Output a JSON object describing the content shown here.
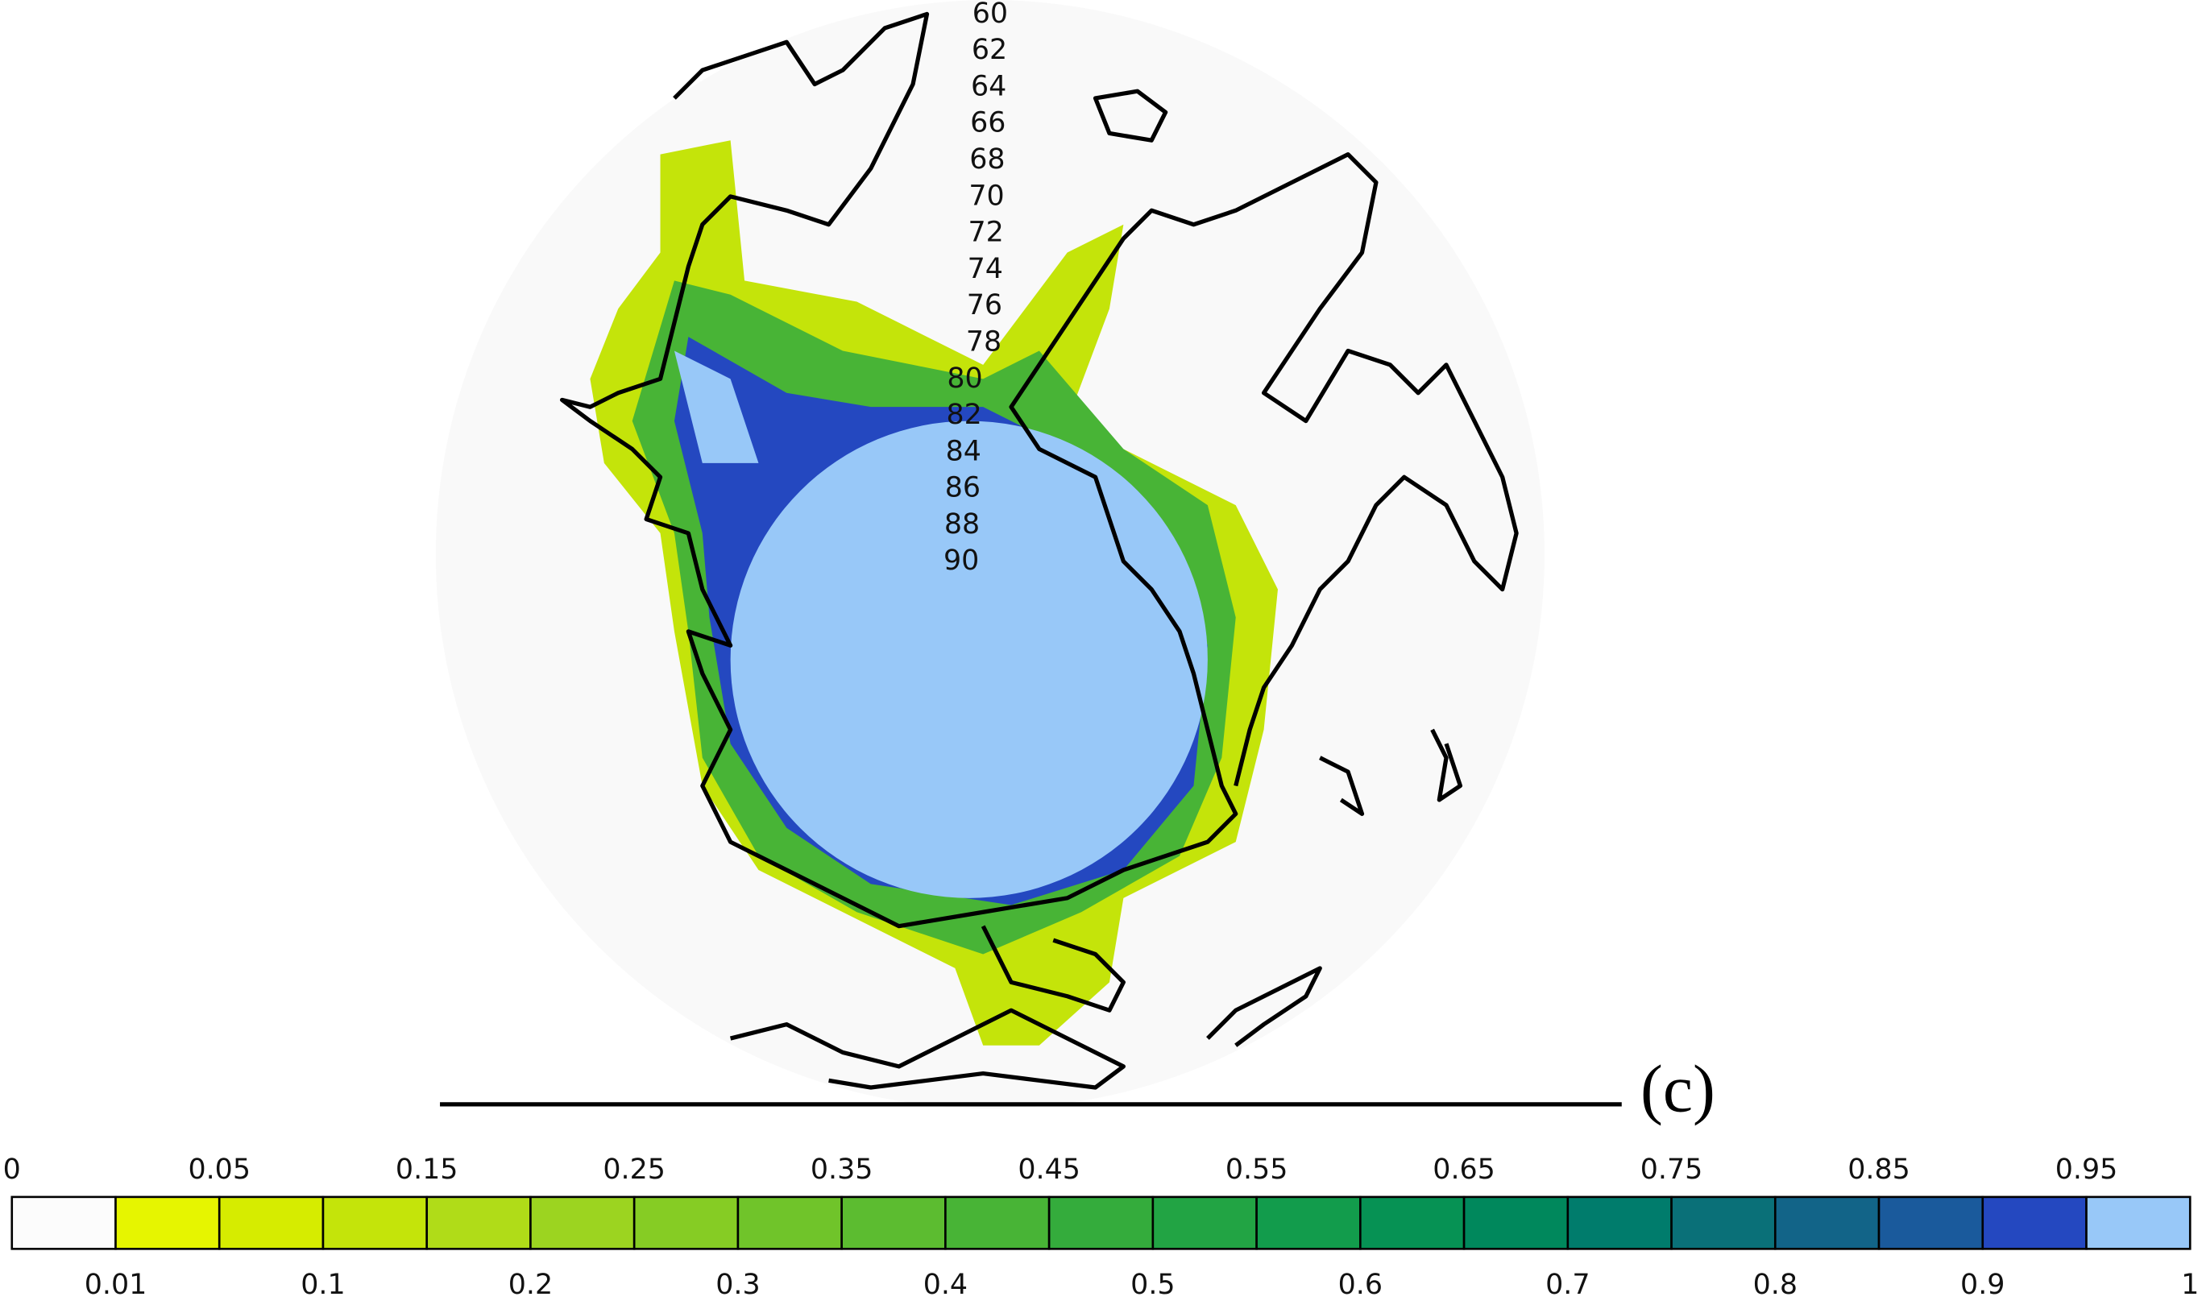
{
  "panel_label": "(c)",
  "latitude_labels": [
    60,
    62,
    64,
    66,
    68,
    70,
    72,
    74,
    76,
    78,
    80,
    82,
    84,
    86,
    88,
    90
  ],
  "colorbar": {
    "levels": [
      0,
      0.01,
      0.05,
      0.1,
      0.15,
      0.2,
      0.25,
      0.3,
      0.35,
      0.4,
      0.45,
      0.5,
      0.55,
      0.6,
      0.65,
      0.7,
      0.75,
      0.8,
      0.85,
      0.9,
      0.95,
      1
    ],
    "colors": [
      "#fcfcfc",
      "#e6f500",
      "#d6ec00",
      "#c4e40a",
      "#b0dc18",
      "#9cd420",
      "#86cc24",
      "#70c42a",
      "#5cbc30",
      "#48b436",
      "#34ac3c",
      "#22a444",
      "#129c4c",
      "#069254",
      "#00885c",
      "#007c6c",
      "#0a7078",
      "#126488",
      "#1a5a9c",
      "#2448c0",
      "#98c8f8"
    ]
  }
}
